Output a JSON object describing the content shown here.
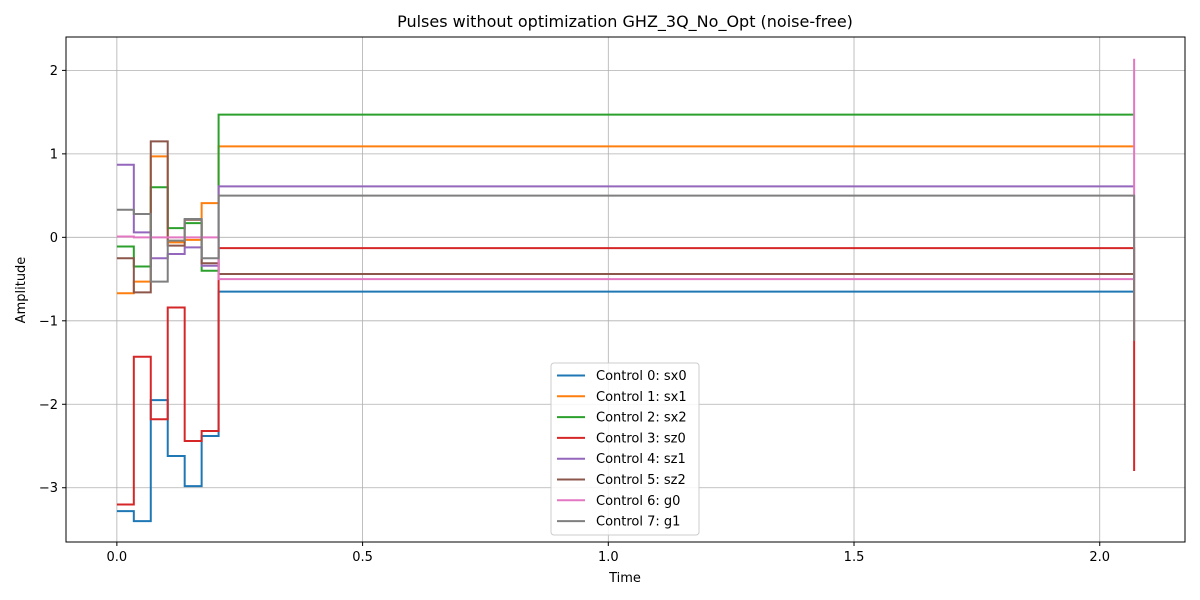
{
  "chart_data": {
    "type": "line",
    "step": true,
    "title": "Pulses without optimization GHZ_3Q_No_Opt (noise-free)",
    "xlabel": "Time",
    "ylabel": "Amplitude",
    "xlim": [
      -0.1035,
      2.1735
    ],
    "ylim": [
      -3.65,
      2.4
    ],
    "xticks": [
      0.0,
      0.5,
      1.0,
      1.5,
      2.0
    ],
    "xtick_labels": [
      "0.0",
      "0.5",
      "1.0",
      "1.5",
      "2.0"
    ],
    "yticks": [
      2,
      1,
      0,
      -1,
      -2,
      -3
    ],
    "ytick_labels": [
      "2",
      "1",
      "0",
      "−1",
      "−2",
      "−3"
    ],
    "grid": true,
    "legend_position": "lower-center",
    "x": [
      0.0,
      0.0345,
      0.069,
      0.1035,
      0.138,
      0.1725,
      0.207,
      2.07
    ],
    "series": [
      {
        "name": "Control 0: sx0",
        "color": "#1f77b4",
        "values": [
          -3.28,
          -3.4,
          -1.95,
          -2.62,
          -2.98,
          -2.38,
          -0.65,
          -0.65
        ]
      },
      {
        "name": "Control 1: sx1",
        "color": "#ff7f0e",
        "values": [
          -0.67,
          -0.53,
          0.97,
          -0.06,
          -0.03,
          0.41,
          1.09,
          1.09
        ]
      },
      {
        "name": "Control 2: sx2",
        "color": "#2ca02c",
        "values": [
          -0.11,
          -0.35,
          0.6,
          0.11,
          0.17,
          -0.4,
          1.47,
          1.47
        ]
      },
      {
        "name": "Control 3: sz0",
        "color": "#d62728",
        "values": [
          -3.2,
          -1.43,
          -2.18,
          -0.84,
          -2.44,
          -2.32,
          -0.13,
          -2.8
        ]
      },
      {
        "name": "Control 4: sz1",
        "color": "#9467bd",
        "values": [
          0.87,
          0.06,
          -0.25,
          -0.2,
          -0.12,
          -0.34,
          0.61,
          0.61
        ]
      },
      {
        "name": "Control 5: sz2",
        "color": "#8c564b",
        "values": [
          -0.25,
          -0.66,
          1.15,
          -0.1,
          0.21,
          -0.31,
          -0.44,
          -0.44
        ]
      },
      {
        "name": "Control 6: g0",
        "color": "#e377c2",
        "values": [
          0.01,
          0.0,
          0.0,
          0.0,
          0.0,
          0.0,
          -0.5,
          2.14
        ]
      },
      {
        "name": "Control 7: g1",
        "color": "#7f7f7f",
        "values": [
          0.33,
          0.28,
          -0.53,
          -0.04,
          0.22,
          -0.25,
          0.5,
          -1.24
        ]
      }
    ]
  }
}
